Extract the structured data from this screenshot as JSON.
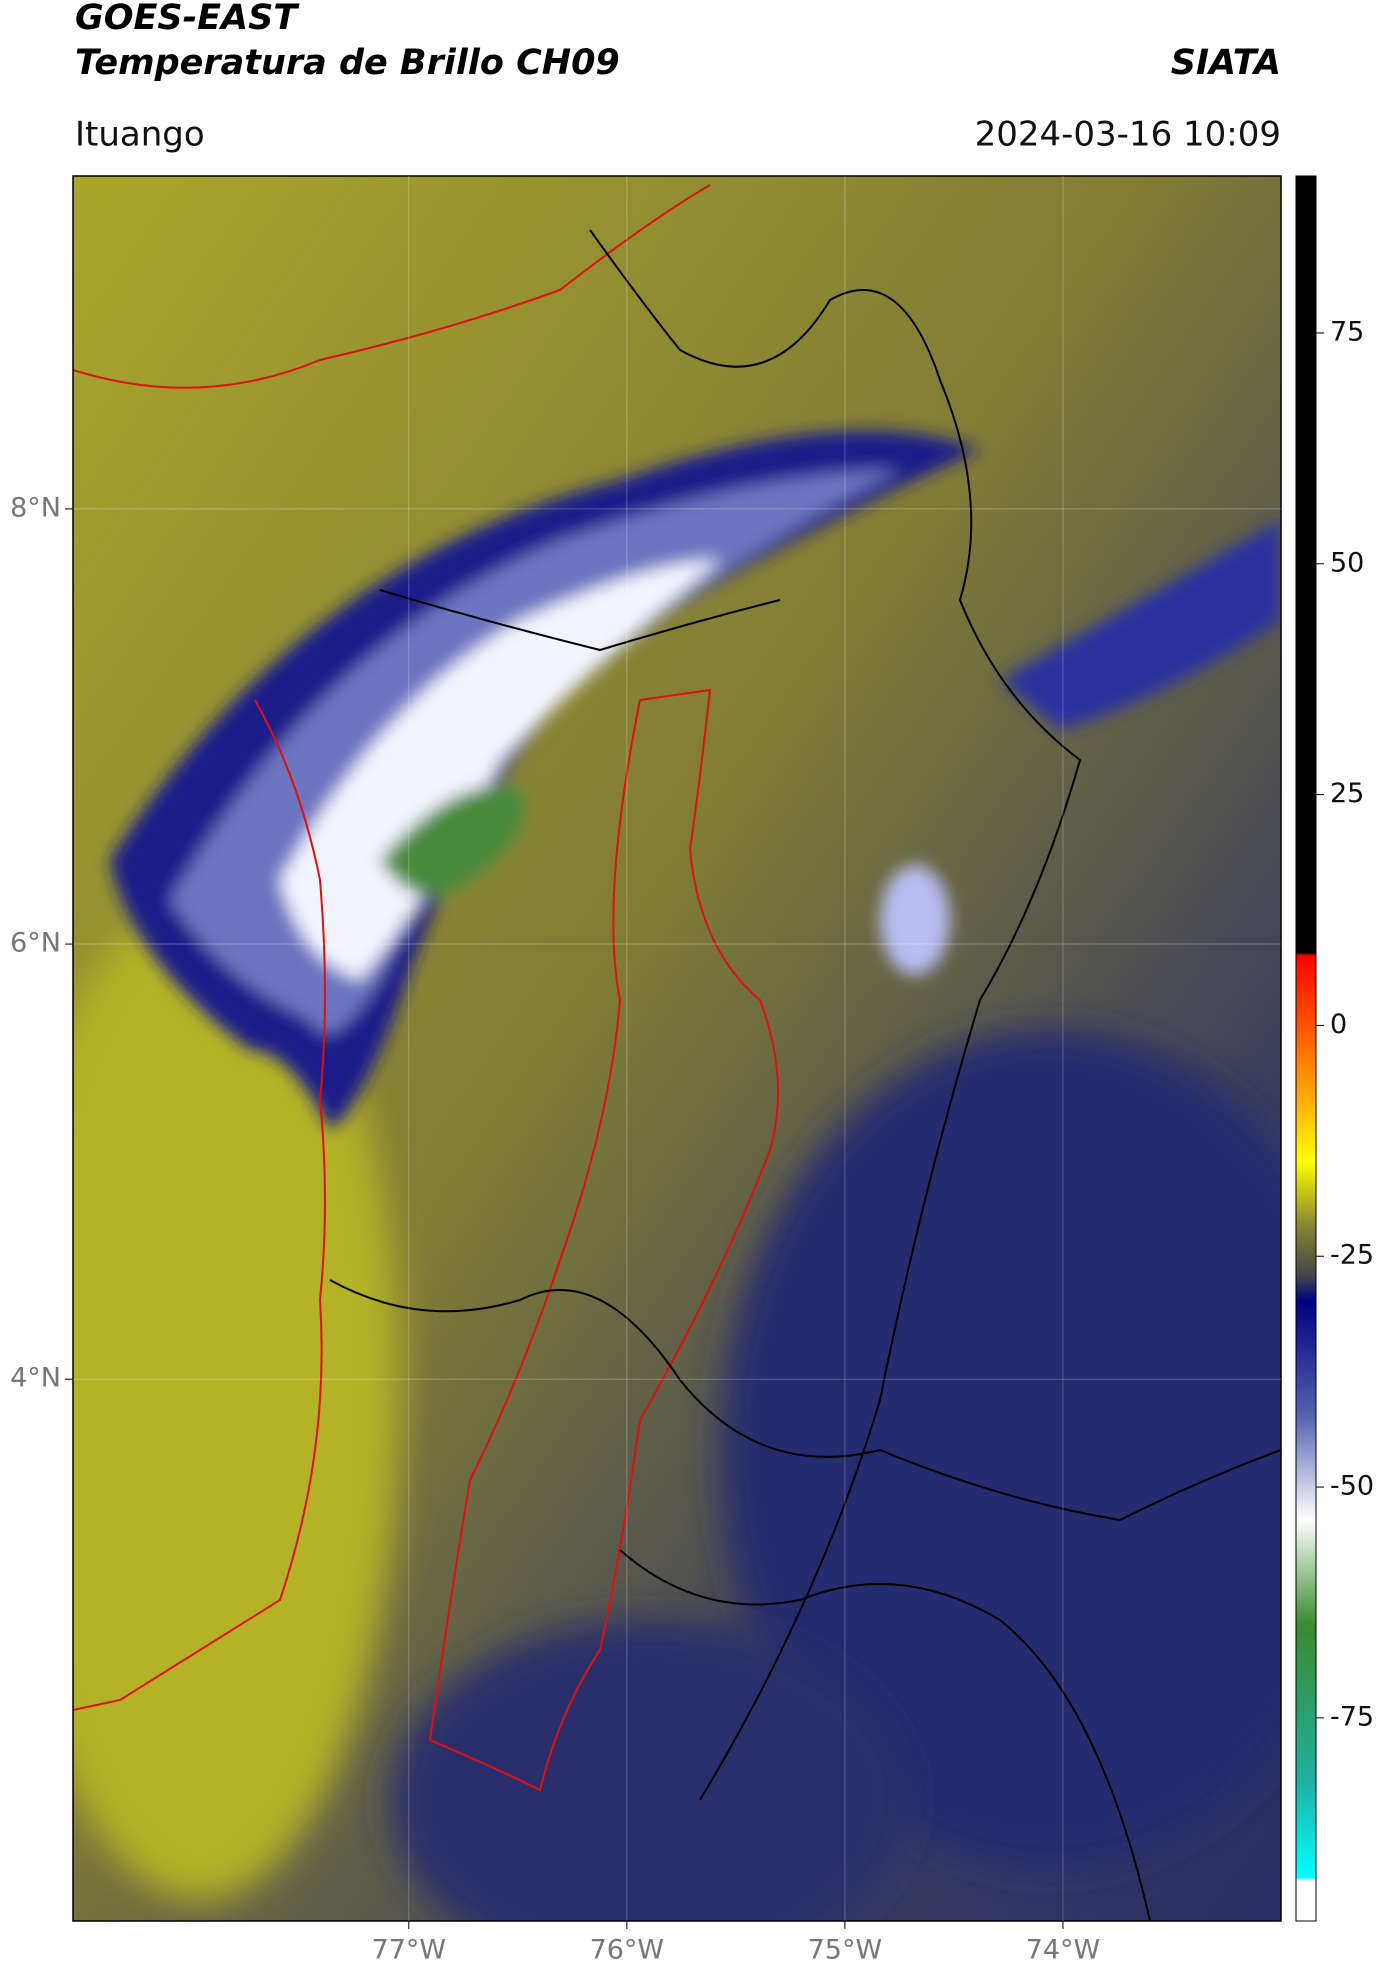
{
  "header": {
    "title": "GOES-EAST",
    "subtitle": "Temperatura de Brillo CH09",
    "agency": "SIATA",
    "location": "Ituango",
    "datetime": "2024-03-16 10:09"
  },
  "map": {
    "type": "map",
    "xlim": [
      -78.54,
      -73.0
    ],
    "ylim": [
      1.51,
      9.53
    ],
    "xticks": [
      {
        "value": -77,
        "label": "77°W"
      },
      {
        "value": -76,
        "label": "76°W"
      },
      {
        "value": -75,
        "label": "75°W"
      },
      {
        "value": -74,
        "label": "74°W"
      }
    ],
    "yticks": [
      {
        "value": 8,
        "label": "8°N"
      },
      {
        "value": 6,
        "label": "6°N"
      },
      {
        "value": 4,
        "label": "4°N"
      }
    ],
    "grid": true
  },
  "colorbar": {
    "clim": [
      -97,
      92
    ],
    "ticks": [
      75,
      50,
      25,
      0,
      -25,
      -50,
      -75
    ]
  }
}
